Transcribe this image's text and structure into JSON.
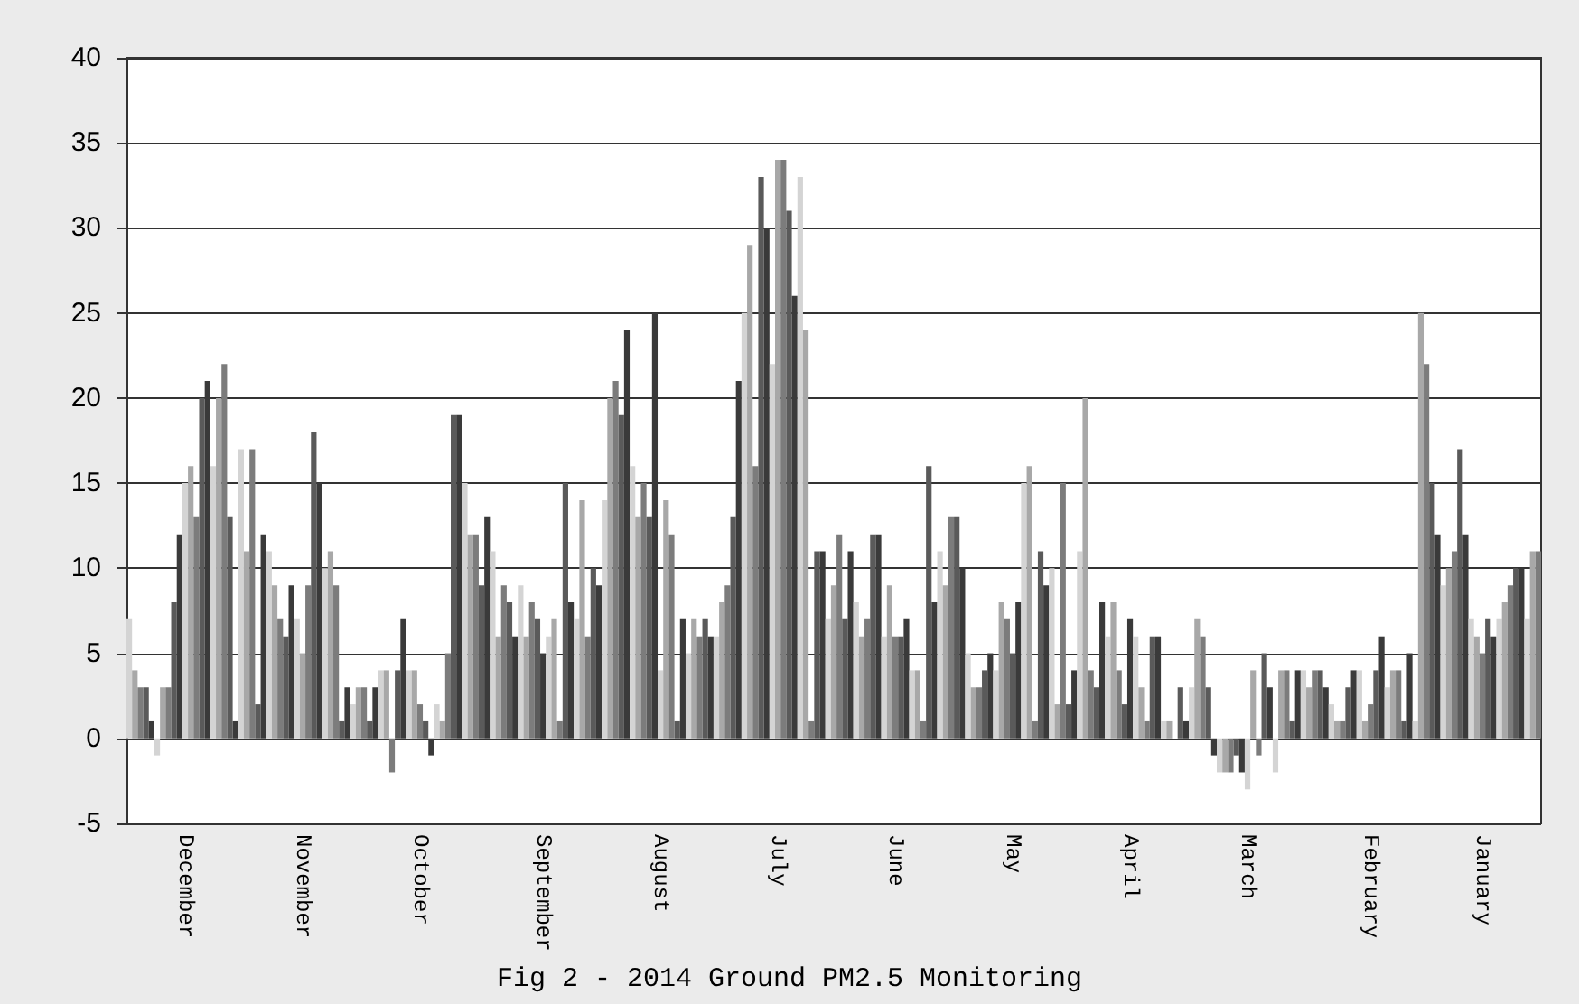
{
  "chart_data": {
    "type": "bar",
    "title": "Fig 2 - 2014 Ground PM2.5 Monitoring",
    "categories": [
      null,
      null,
      null,
      null,
      null,
      null,
      null,
      null,
      null,
      null,
      "December",
      null,
      null,
      null,
      null,
      null,
      null,
      null,
      null,
      null,
      null,
      null,
      null,
      null,
      null,
      null,
      null,
      null,
      null,
      null,
      null,
      "November",
      null,
      null,
      null,
      null,
      null,
      null,
      null,
      null,
      null,
      null,
      null,
      null,
      null,
      null,
      null,
      null,
      null,
      null,
      null,
      null,
      "October",
      null,
      null,
      null,
      null,
      null,
      null,
      null,
      null,
      null,
      null,
      null,
      null,
      null,
      null,
      null,
      null,
      null,
      null,
      null,
      null,
      null,
      "September",
      null,
      null,
      null,
      null,
      null,
      null,
      null,
      null,
      null,
      null,
      null,
      null,
      null,
      null,
      null,
      null,
      null,
      null,
      null,
      null,
      "August",
      null,
      null,
      null,
      null,
      null,
      null,
      null,
      null,
      null,
      null,
      null,
      null,
      null,
      null,
      null,
      null,
      null,
      null,
      null,
      null,
      "July",
      null,
      null,
      null,
      null,
      null,
      null,
      null,
      null,
      null,
      null,
      null,
      null,
      null,
      null,
      null,
      null,
      null,
      null,
      null,
      null,
      "June",
      null,
      null,
      null,
      null,
      null,
      null,
      null,
      null,
      null,
      null,
      null,
      null,
      null,
      null,
      null,
      null,
      null,
      null,
      null,
      null,
      "May",
      null,
      null,
      null,
      null,
      null,
      null,
      null,
      null,
      null,
      null,
      null,
      null,
      null,
      null,
      null,
      null,
      null,
      null,
      null,
      null,
      "April",
      null,
      null,
      null,
      null,
      null,
      null,
      null,
      null,
      null,
      null,
      null,
      null,
      null,
      null,
      null,
      null,
      null,
      null,
      null,
      null,
      "March",
      null,
      null,
      null,
      null,
      null,
      null,
      null,
      null,
      null,
      null,
      null,
      null,
      null,
      null,
      null,
      null,
      null,
      null,
      null,
      null,
      null,
      "February",
      null,
      null,
      null,
      null,
      null,
      null,
      null,
      null,
      null,
      null,
      null,
      null,
      null,
      null,
      null,
      null,
      null,
      null,
      null,
      "January",
      null,
      null,
      null,
      null,
      null,
      null,
      null,
      null,
      null,
      null
    ],
    "values": [
      7,
      4,
      3,
      3,
      1,
      -1,
      3,
      3,
      8,
      12,
      15,
      16,
      13,
      20,
      21,
      16,
      20,
      22,
      13,
      1,
      17,
      11,
      17,
      2,
      12,
      11,
      9,
      7,
      6,
      9,
      7,
      5,
      9,
      18,
      15,
      10,
      11,
      9,
      1,
      3,
      2,
      3,
      3,
      1,
      3,
      4,
      4,
      -2,
      4,
      7,
      4,
      4,
      2,
      1,
      -1,
      2,
      1,
      5,
      19,
      19,
      15,
      12,
      12,
      9,
      13,
      11,
      6,
      9,
      8,
      6,
      9,
      6,
      8,
      7,
      5,
      6,
      7,
      1,
      15,
      8,
      7,
      14,
      6,
      10,
      9,
      14,
      20,
      21,
      19,
      24,
      16,
      13,
      15,
      13,
      25,
      4,
      14,
      12,
      1,
      7,
      5,
      7,
      6,
      7,
      6,
      6,
      8,
      9,
      13,
      21,
      25,
      29,
      16,
      33,
      30,
      22,
      34,
      34,
      31,
      26,
      33,
      24,
      1,
      11,
      11,
      7,
      9,
      12,
      7,
      11,
      8,
      6,
      7,
      12,
      12,
      6,
      9,
      6,
      6,
      7,
      4,
      4,
      1,
      16,
      8,
      11,
      9,
      13,
      13,
      10,
      5,
      3,
      3,
      4,
      5,
      4,
      8,
      7,
      5,
      8,
      15,
      16,
      1,
      11,
      9,
      10,
      2,
      15,
      2,
      4,
      11,
      20,
      4,
      3,
      8,
      6,
      8,
      4,
      2,
      7,
      6,
      3,
      1,
      6,
      6,
      1,
      1,
      0,
      3,
      1,
      3,
      7,
      6,
      3,
      -1,
      -2,
      -2,
      -2,
      -1,
      -2,
      -3,
      4,
      -1,
      5,
      3,
      -2,
      4,
      4,
      1,
      4,
      4,
      3,
      4,
      4,
      3,
      2,
      1,
      1,
      3,
      4,
      4,
      1,
      2,
      4,
      6,
      3,
      4,
      4,
      1,
      5,
      1,
      25,
      22,
      15,
      12,
      9,
      10,
      11,
      17,
      12,
      7,
      6,
      5,
      7,
      6,
      7,
      8,
      9,
      10,
      10,
      7,
      11,
      11
    ],
    "colors": [
      "#d4d4d4",
      "#a8a8a8",
      "#7c7c7c",
      "#5a5a5a",
      "#3a3a3a",
      "#d4d4d4",
      "#a8a8a8",
      "#7c7c7c",
      "#5a5a5a",
      "#3a3a3a",
      "#d4d4d4",
      "#a8a8a8",
      "#7c7c7c",
      "#5a5a5a",
      "#3a3a3a",
      "#d4d4d4",
      "#a8a8a8",
      "#7c7c7c",
      "#5a5a5a",
      "#3a3a3a",
      "#d4d4d4",
      "#a8a8a8",
      "#7c7c7c",
      "#5a5a5a",
      "#3a3a3a",
      "#d4d4d4",
      "#a8a8a8",
      "#7c7c7c",
      "#5a5a5a",
      "#3a3a3a",
      "#d4d4d4",
      "#a8a8a8",
      "#7c7c7c",
      "#5a5a5a",
      "#3a3a3a",
      "#d4d4d4",
      "#a8a8a8",
      "#7c7c7c",
      "#5a5a5a",
      "#3a3a3a",
      "#d4d4d4",
      "#a8a8a8",
      "#7c7c7c",
      "#5a5a5a",
      "#3a3a3a",
      "#d4d4d4",
      "#a8a8a8",
      "#7c7c7c",
      "#5a5a5a",
      "#3a3a3a",
      "#d4d4d4",
      "#a8a8a8",
      "#7c7c7c",
      "#5a5a5a",
      "#3a3a3a",
      "#d4d4d4",
      "#a8a8a8",
      "#7c7c7c",
      "#5a5a5a",
      "#3a3a3a",
      "#d4d4d4",
      "#a8a8a8",
      "#7c7c7c",
      "#5a5a5a",
      "#3a3a3a",
      "#d4d4d4",
      "#a8a8a8",
      "#7c7c7c",
      "#5a5a5a",
      "#3a3a3a",
      "#d4d4d4",
      "#a8a8a8",
      "#7c7c7c",
      "#5a5a5a",
      "#3a3a3a",
      "#d4d4d4",
      "#a8a8a8",
      "#7c7c7c",
      "#5a5a5a",
      "#3a3a3a",
      "#d4d4d4",
      "#a8a8a8",
      "#7c7c7c",
      "#5a5a5a",
      "#3a3a3a",
      "#d4d4d4",
      "#a8a8a8",
      "#7c7c7c",
      "#5a5a5a",
      "#3a3a3a",
      "#d4d4d4",
      "#a8a8a8",
      "#7c7c7c",
      "#5a5a5a",
      "#3a3a3a",
      "#d4d4d4",
      "#a8a8a8",
      "#7c7c7c",
      "#5a5a5a",
      "#3a3a3a",
      "#d4d4d4",
      "#a8a8a8",
      "#7c7c7c",
      "#5a5a5a",
      "#3a3a3a",
      "#d4d4d4",
      "#a8a8a8",
      "#7c7c7c",
      "#5a5a5a",
      "#3a3a3a",
      "#d4d4d4",
      "#a8a8a8",
      "#7c7c7c",
      "#5a5a5a",
      "#3a3a3a",
      "#d4d4d4",
      "#a8a8a8",
      "#7c7c7c",
      "#5a5a5a",
      "#3a3a3a",
      "#d4d4d4",
      "#a8a8a8",
      "#7c7c7c",
      "#5a5a5a",
      "#3a3a3a",
      "#d4d4d4",
      "#a8a8a8",
      "#7c7c7c",
      "#5a5a5a",
      "#3a3a3a",
      "#d4d4d4",
      "#a8a8a8",
      "#7c7c7c",
      "#5a5a5a",
      "#3a3a3a",
      "#d4d4d4",
      "#a8a8a8",
      "#7c7c7c",
      "#5a5a5a",
      "#3a3a3a",
      "#d4d4d4",
      "#a8a8a8",
      "#7c7c7c",
      "#5a5a5a",
      "#3a3a3a",
      "#d4d4d4",
      "#a8a8a8",
      "#7c7c7c",
      "#5a5a5a",
      "#3a3a3a",
      "#d4d4d4",
      "#a8a8a8",
      "#7c7c7c",
      "#5a5a5a",
      "#3a3a3a",
      "#d4d4d4",
      "#a8a8a8",
      "#7c7c7c",
      "#5a5a5a",
      "#3a3a3a",
      "#d4d4d4",
      "#a8a8a8",
      "#7c7c7c",
      "#5a5a5a",
      "#3a3a3a",
      "#d4d4d4",
      "#a8a8a8",
      "#7c7c7c",
      "#5a5a5a",
      "#3a3a3a",
      "#d4d4d4",
      "#a8a8a8",
      "#7c7c7c",
      "#5a5a5a",
      "#3a3a3a",
      "#d4d4d4",
      "#a8a8a8",
      "#7c7c7c",
      "#5a5a5a",
      "#3a3a3a",
      "#d4d4d4",
      "#a8a8a8",
      "#7c7c7c",
      "#5a5a5a",
      "#3a3a3a",
      "#d4d4d4",
      "#a8a8a8",
      "#7c7c7c",
      "#5a5a5a",
      "#3a3a3a",
      "#d4d4d4",
      "#a8a8a8",
      "#7c7c7c",
      "#5a5a5a",
      "#3a3a3a",
      "#d4d4d4",
      "#a8a8a8",
      "#7c7c7c",
      "#5a5a5a",
      "#3a3a3a",
      "#d4d4d4",
      "#a8a8a8",
      "#7c7c7c",
      "#5a5a5a",
      "#3a3a3a",
      "#d4d4d4",
      "#a8a8a8",
      "#7c7c7c",
      "#5a5a5a",
      "#3a3a3a",
      "#d4d4d4",
      "#a8a8a8",
      "#7c7c7c",
      "#5a5a5a",
      "#3a3a3a",
      "#d4d4d4",
      "#a8a8a8",
      "#7c7c7c",
      "#5a5a5a",
      "#3a3a3a",
      "#d4d4d4",
      "#a8a8a8",
      "#7c7c7c",
      "#5a5a5a",
      "#3a3a3a",
      "#d4d4d4",
      "#a8a8a8",
      "#7c7c7c",
      "#5a5a5a",
      "#3a3a3a",
      "#d4d4d4",
      "#a8a8a8",
      "#7c7c7c",
      "#5a5a5a",
      "#3a3a3a",
      "#d4d4d4",
      "#a8a8a8",
      "#7c7c7c",
      "#5a5a5a",
      "#3a3a3a",
      "#d4d4d4",
      "#a8a8a8",
      "#7c7c7c",
      "#5a5a5a",
      "#3a3a3a",
      "#d4d4d4",
      "#a8a8a8",
      "#7c7c7c",
      "#5a5a5a",
      "#3a3a3a",
      "#d4d4d4",
      "#a8a8a8",
      "#7c7c7c"
    ],
    "ylim": [
      -5,
      40
    ],
    "yticks": [
      -5,
      0,
      5,
      10,
      15,
      20,
      25,
      30,
      35,
      40
    ],
    "grid": "y"
  }
}
